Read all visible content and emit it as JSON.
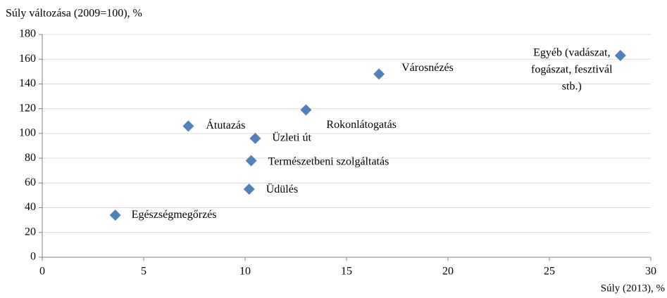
{
  "chart_data": {
    "type": "scatter",
    "title": "Súly változása (2009=100), %",
    "x_label": "Súly (2013), %",
    "series": [
      {
        "color": "#4f81bd",
        "x": [
          3.6,
          7.2,
          10.5,
          10.3,
          10.2,
          13.0,
          16.6,
          28.5
        ],
        "values": [
          34,
          106,
          96,
          78,
          55,
          119,
          148,
          163
        ]
      }
    ],
    "labels": [
      [
        "Egészségmegőrzés"
      ],
      [
        "Átutazás"
      ],
      [
        "Üzleti út"
      ],
      [
        "Természetbeni szolgáltatás"
      ],
      [
        "Üdülés"
      ],
      [
        "Rokonlátogatás"
      ],
      [
        "Városnézés"
      ],
      [
        "Egyéb (vadászat,",
        "fogászat, fesztivál",
        "stb.)"
      ]
    ],
    "xlim": [
      0,
      30
    ],
    "xticks": [
      0,
      5,
      10,
      15,
      20,
      25,
      30
    ],
    "ylim": [
      0,
      180
    ],
    "yticks": [
      0,
      20,
      40,
      60,
      80,
      100,
      120,
      140,
      160,
      180
    ],
    "grid": true
  }
}
